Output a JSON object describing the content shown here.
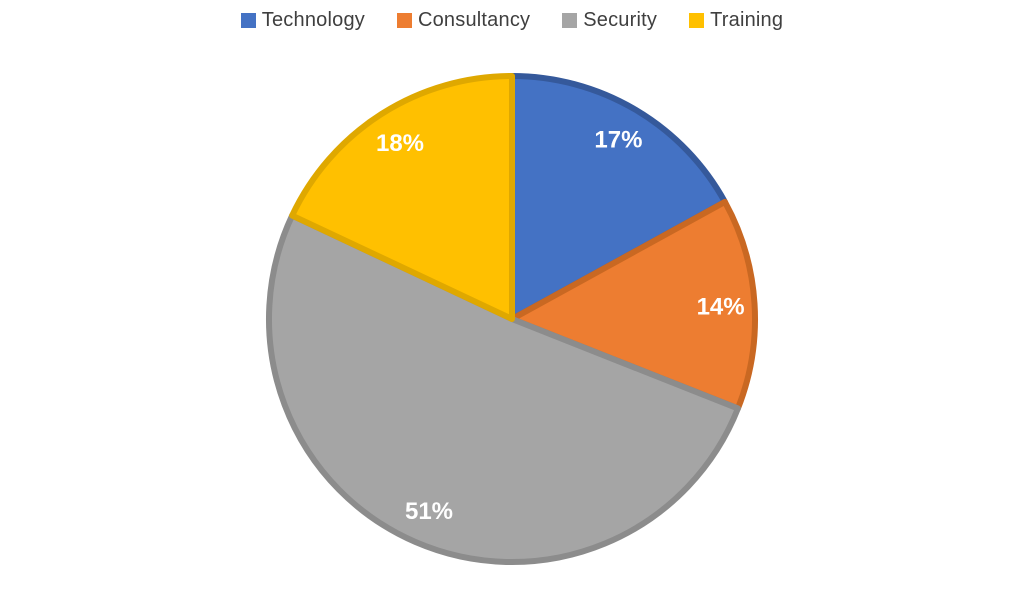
{
  "chart_data": {
    "type": "pie",
    "categories": [
      "Technology",
      "Consultancy",
      "Security",
      "Training"
    ],
    "values": [
      17,
      14,
      51,
      18
    ],
    "slice_labels": [
      "17%",
      "14%",
      "51%",
      "18%"
    ],
    "colors": [
      "#4472C4",
      "#ED7D31",
      "#A5A5A5",
      "#FFC000"
    ],
    "edge_colors": [
      "#35599b",
      "#c96822",
      "#8c8c8c",
      "#dfa800"
    ],
    "label_color": "#ffffff",
    "legend_text_color": "#3f3f3f",
    "background": "#ffffff",
    "legend_position": "top",
    "start_angle_deg": 0,
    "direction": "clockwise",
    "title": "",
    "xlabel": "",
    "ylabel": ""
  }
}
